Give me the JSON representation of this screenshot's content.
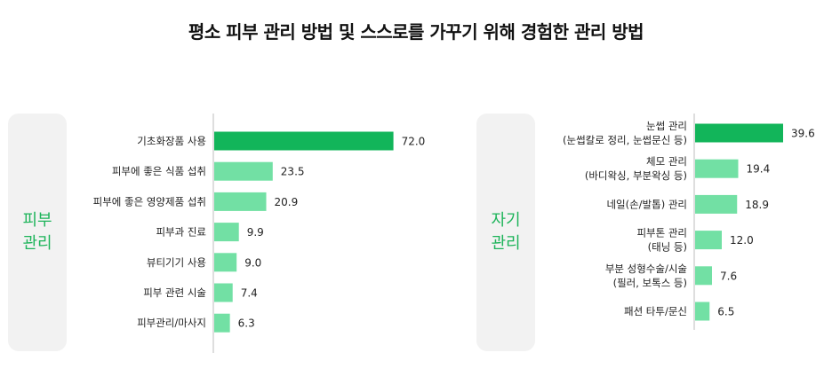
{
  "title": "평소 피부 관리 방법 및 스스로를 가꾸기 위해 경험한 관리 방법",
  "chart_data": [
    {
      "type": "bar",
      "orientation": "horizontal",
      "group_label": [
        "피부",
        "관리"
      ],
      "categories": [
        [
          "기초화장품 사용"
        ],
        [
          "피부에 좋은 식품 섭취"
        ],
        [
          "피부에 좋은 영양제품 섭취"
        ],
        [
          "피부과 진료"
        ],
        [
          "뷰티기기 사용"
        ],
        [
          "피부 관련 시술"
        ],
        [
          "피부관리/마사지"
        ]
      ],
      "values": [
        72.0,
        23.5,
        20.9,
        9.9,
        9.0,
        7.4,
        6.3
      ],
      "labels": [
        "72.0",
        "23.5",
        "20.9",
        "9.9",
        "9.0",
        "7.4",
        "6.3"
      ],
      "xlim": [
        0,
        100
      ],
      "highlight_color": "#12b55a",
      "bar_color": "#72e0a4"
    },
    {
      "type": "bar",
      "orientation": "horizontal",
      "group_label": [
        "자기",
        "관리"
      ],
      "categories": [
        [
          "눈썹 관리",
          "(눈썹칼로 정리, 눈썹문신 등)"
        ],
        [
          "체모 관리",
          "(바디왁싱, 부분왁싱 등)"
        ],
        [
          "네일(손/발톱) 관리"
        ],
        [
          "피부톤 관리",
          "(태닝 등)"
        ],
        [
          "부분 성형수술/시술",
          "(필러, 보톡스 등)"
        ],
        [
          "패션 타투/문신"
        ]
      ],
      "values": [
        39.6,
        19.4,
        18.9,
        12.0,
        7.6,
        6.5
      ],
      "labels": [
        "39.6",
        "19.4",
        "18.9",
        "12.0",
        "7.6",
        "6.5"
      ],
      "xlim": [
        0,
        100
      ],
      "highlight_color": "#12b55a",
      "bar_color": "#72e0a4"
    }
  ]
}
